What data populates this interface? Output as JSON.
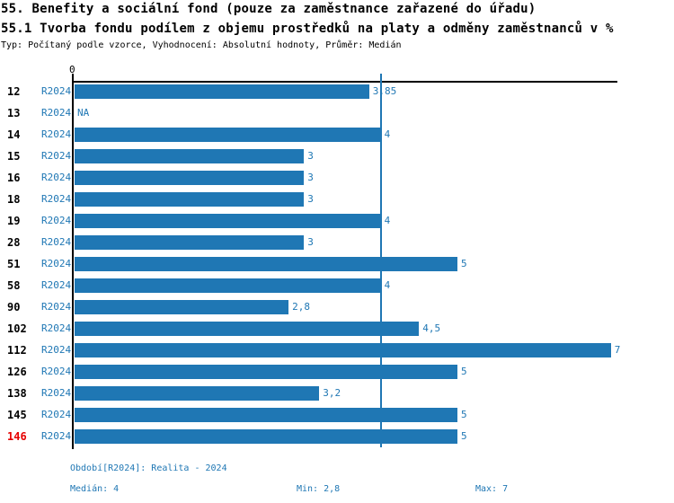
{
  "header": {
    "title_line1": "55. Benefity a sociální fond (pouze za zaměstnance zařazené do úřadu)",
    "title_line2": "55.1 Tvorba fondu podílem z objemu prostředků na platy a odměny zaměstnanců v %",
    "meta": "Typ: Počítaný podle vzorce, Vyhodnocení: Absolutní hodnoty, Průměr: Medián"
  },
  "chart_data": {
    "type": "bar",
    "orientation": "horizontal",
    "title": "55.1 Tvorba fondu podílem z objemu prostředků na platy a odměny zaměstnanců v %",
    "series_label": "R2024",
    "categories": [
      "12",
      "13",
      "14",
      "15",
      "16",
      "18",
      "19",
      "28",
      "51",
      "58",
      "90",
      "102",
      "112",
      "126",
      "138",
      "145",
      "146"
    ],
    "values": [
      3.85,
      null,
      4,
      3,
      3,
      3,
      4,
      3,
      5,
      4,
      2.8,
      4.5,
      7,
      5,
      3.2,
      5,
      5
    ],
    "value_labels": [
      "3,85",
      "NA",
      "4",
      "3",
      "3",
      "3",
      "4",
      "3",
      "5",
      "4",
      "2,8",
      "4,5",
      "7",
      "5",
      "3,2",
      "5",
      "5"
    ],
    "highlighted_category": "146",
    "median_line": 4,
    "axis": {
      "origin_label": "0",
      "x_min": 0,
      "x_max": 7.08,
      "grid": false
    },
    "colors": {
      "bar": "#1f77b4",
      "highlight": "#e60000",
      "axis": "#000000"
    }
  },
  "footer": {
    "period": "Období[R2024]: Realita - 2024",
    "median": "Medián: 4",
    "min": "Min: 2,8",
    "max": "Max: 7"
  }
}
